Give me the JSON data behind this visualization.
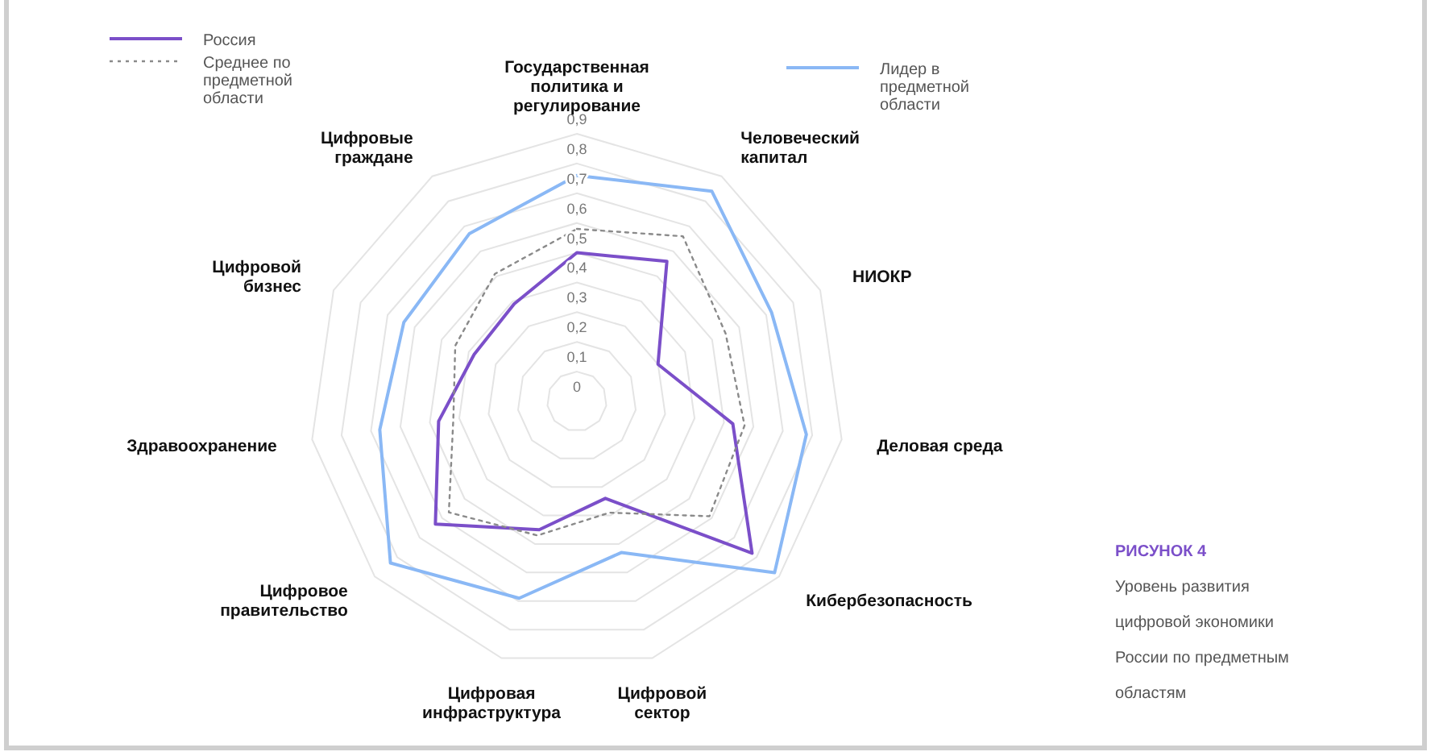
{
  "chart_data": {
    "type": "radar",
    "title": "РИСУНОК 4",
    "subtitle": "Уровень развития цифровой экономики России по предметным областям",
    "categories": [
      "Государственная политика и регулирование",
      "Человеческий капитал",
      "НИОКР",
      "Деловая среда",
      "Кибербезопасность",
      "Цифровой сектор",
      "Цифровая инфраструктура",
      "Цифровое правительство",
      "Здравоохранение",
      "Цифровой бизнес",
      "Цифровые граждане"
    ],
    "series": [
      {
        "name": "Россия",
        "color": "#7b4fc9",
        "line_style": "solid",
        "values": [
          0.5,
          0.56,
          0.3,
          0.53,
          0.78,
          0.34,
          0.45,
          0.63,
          0.47,
          0.38,
          0.39
        ]
      },
      {
        "name": "Среднее по предметной области",
        "color": "#8a8a8a",
        "line_style": "dotted",
        "values": [
          0.58,
          0.66,
          0.55,
          0.57,
          0.59,
          0.39,
          0.47,
          0.57,
          0.42,
          0.45,
          0.51
        ]
      },
      {
        "name": "Лидер в предметной области",
        "color": "#8ab8f5",
        "line_style": "solid",
        "values": [
          0.76,
          0.84,
          0.72,
          0.78,
          0.88,
          0.53,
          0.69,
          0.83,
          0.67,
          0.64,
          0.67
        ]
      }
    ],
    "ylim": [
      0,
      0.9
    ],
    "yticks": [
      0,
      {
        "value": 0.1,
        "label": "0,1"
      },
      {
        "value": 0.2,
        "label": "0,2"
      },
      {
        "value": 0.3,
        "label": "0,3"
      },
      {
        "value": 0.4,
        "label": "0,4"
      },
      {
        "value": 0.5,
        "label": "0,5"
      },
      {
        "value": 0.6,
        "label": "0,6"
      },
      {
        "value": 0.7,
        "label": "0,7"
      },
      {
        "value": 0.8,
        "label": "0,8"
      },
      {
        "value": 0.9,
        "label": "0,9"
      }
    ],
    "grid": true,
    "legend": "top left",
    "marker": "none"
  }
}
